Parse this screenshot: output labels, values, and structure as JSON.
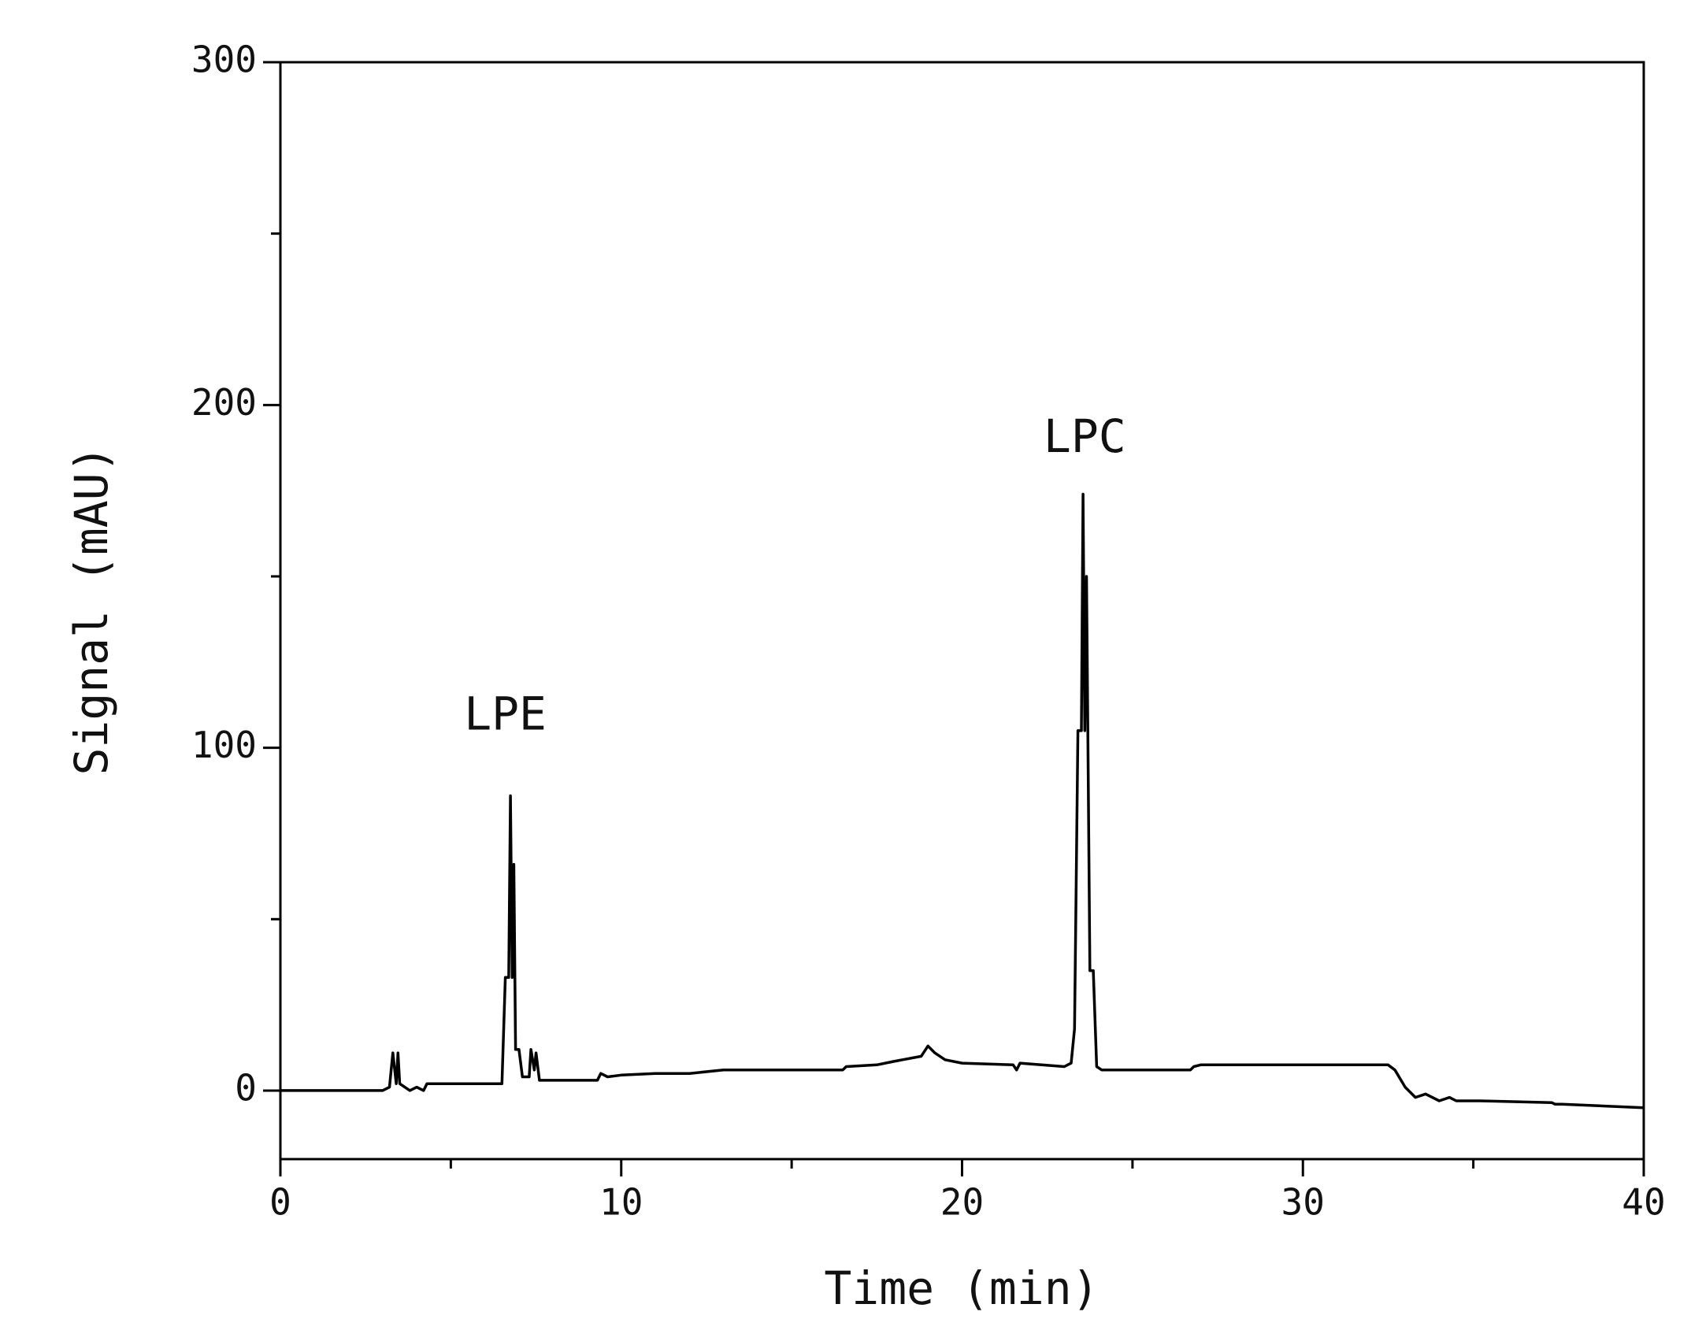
{
  "chart_data": {
    "type": "line",
    "xlabel": "Time (min)",
    "ylabel": "Signal (mAU)",
    "xlim": [
      0,
      40
    ],
    "ylim": [
      -20,
      300
    ],
    "xticks": [
      0,
      10,
      20,
      30,
      40
    ],
    "yticks": [
      0,
      100,
      200,
      300
    ],
    "minor_xticks": [
      5,
      15,
      25,
      35
    ],
    "minor_yticks": [
      50,
      150,
      250
    ],
    "color": "#000000",
    "grid": false,
    "annotations": [
      {
        "text": "LPE",
        "x": 6.6,
        "y": 109
      },
      {
        "text": "LPC",
        "x": 23.6,
        "y": 190
      }
    ],
    "x": [
      0,
      3.0,
      3.2,
      3.3,
      3.4,
      3.45,
      3.5,
      3.8,
      4.0,
      4.2,
      4.3,
      6.5,
      6.6,
      6.7,
      6.75,
      6.8,
      6.85,
      6.9,
      7.0,
      7.1,
      7.3,
      7.35,
      7.45,
      7.5,
      7.6,
      9.3,
      9.4,
      9.6,
      10,
      11,
      12,
      13,
      16.5,
      16.6,
      17.5,
      18,
      18.8,
      19,
      19.2,
      19.5,
      20,
      21.5,
      21.6,
      21.7,
      23.0,
      23.2,
      23.3,
      23.4,
      23.5,
      23.55,
      23.6,
      23.65,
      23.75,
      23.85,
      23.95,
      24.1,
      26.7,
      26.8,
      27,
      32.5,
      32.7,
      33,
      33.3,
      33.6,
      34,
      34.3,
      34.5,
      35,
      35.2,
      37.3,
      37.4,
      37.6,
      40
    ],
    "y": [
      0,
      0,
      1,
      11,
      2,
      11,
      2,
      0,
      1,
      0,
      2,
      2,
      33,
      33,
      86,
      33,
      66,
      12,
      12,
      4,
      4,
      12,
      6,
      11,
      3,
      3,
      5,
      4,
      4.5,
      5,
      5,
      6,
      6,
      7,
      7.5,
      8.5,
      10,
      13,
      11,
      9,
      8,
      7.5,
      6,
      8,
      7,
      8,
      18,
      105,
      105,
      174,
      105,
      150,
      35,
      35,
      7,
      6,
      6,
      7,
      7.5,
      7.5,
      6,
      1,
      -2,
      -1,
      -3,
      -2,
      -3,
      -3,
      -3,
      -3.5,
      -4,
      -4,
      -5
    ]
  }
}
